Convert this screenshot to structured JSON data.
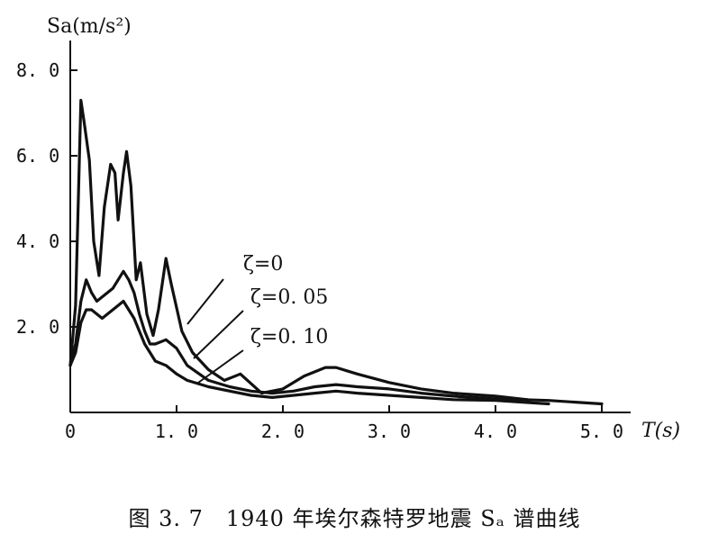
{
  "chart_data": {
    "type": "line",
    "ylabel": "Sa(m/s²)",
    "xlabel": "T(s)",
    "xlim": [
      0,
      5.0
    ],
    "ylim": [
      0,
      8.0
    ],
    "x_ticks": [
      0,
      1.0,
      2.0,
      3.0,
      4.0,
      5.0
    ],
    "x_tick_labels": [
      "0",
      "1. 0",
      "2. 0",
      "3. 0",
      "4. 0",
      "5. 0"
    ],
    "y_ticks": [
      2.0,
      4.0,
      6.0,
      8.0
    ],
    "y_tick_labels": [
      "2. 0",
      "4. 0",
      "6. 0",
      "8. 0"
    ],
    "grid": false,
    "series": [
      {
        "name": "ζ=0",
        "x": [
          0.0,
          0.05,
          0.1,
          0.13,
          0.18,
          0.22,
          0.27,
          0.32,
          0.38,
          0.42,
          0.45,
          0.5,
          0.53,
          0.57,
          0.62,
          0.66,
          0.72,
          0.78,
          0.83,
          0.9,
          0.95,
          1.05,
          1.15,
          1.3,
          1.45,
          1.6,
          1.8,
          2.0,
          2.2,
          2.4,
          2.5,
          2.7,
          3.0,
          3.3,
          3.6,
          4.0,
          4.3
        ],
        "y": [
          1.1,
          2.5,
          7.3,
          6.8,
          5.9,
          4.0,
          3.2,
          4.8,
          5.8,
          5.6,
          4.5,
          5.6,
          6.1,
          5.3,
          3.1,
          3.5,
          2.3,
          1.8,
          2.4,
          3.6,
          3.0,
          1.9,
          1.4,
          1.0,
          0.75,
          0.9,
          0.45,
          0.55,
          0.85,
          1.05,
          1.05,
          0.9,
          0.7,
          0.55,
          0.45,
          0.38,
          0.3
        ]
      },
      {
        "name": "ζ=0.05",
        "x": [
          0.0,
          0.05,
          0.1,
          0.15,
          0.2,
          0.25,
          0.3,
          0.35,
          0.4,
          0.45,
          0.5,
          0.55,
          0.6,
          0.65,
          0.7,
          0.75,
          0.8,
          0.9,
          1.0,
          1.1,
          1.3,
          1.5,
          1.7,
          1.9,
          2.1,
          2.3,
          2.5,
          2.7,
          3.0,
          3.3,
          3.6,
          4.0,
          4.5,
          5.0
        ],
        "y": [
          1.1,
          1.6,
          2.6,
          3.1,
          2.8,
          2.6,
          2.7,
          2.8,
          2.9,
          3.1,
          3.3,
          3.1,
          2.8,
          2.3,
          1.9,
          1.6,
          1.6,
          1.7,
          1.5,
          1.1,
          0.75,
          0.6,
          0.5,
          0.45,
          0.5,
          0.6,
          0.65,
          0.6,
          0.55,
          0.45,
          0.38,
          0.32,
          0.28,
          0.2
        ]
      },
      {
        "name": "ζ=0.10",
        "x": [
          0.0,
          0.05,
          0.1,
          0.15,
          0.2,
          0.3,
          0.4,
          0.5,
          0.6,
          0.7,
          0.8,
          0.9,
          1.0,
          1.1,
          1.3,
          1.5,
          1.7,
          1.9,
          2.1,
          2.3,
          2.5,
          2.7,
          3.0,
          3.3,
          3.6,
          4.0,
          4.5
        ],
        "y": [
          1.1,
          1.4,
          2.1,
          2.4,
          2.4,
          2.2,
          2.4,
          2.6,
          2.2,
          1.6,
          1.2,
          1.1,
          0.9,
          0.75,
          0.6,
          0.5,
          0.4,
          0.35,
          0.4,
          0.45,
          0.5,
          0.45,
          0.4,
          0.35,
          0.3,
          0.28,
          0.2
        ]
      }
    ],
    "annotations": [
      "ζ=0",
      "ζ=0. 05",
      "ζ=0. 10"
    ]
  },
  "caption": "图 3. 7　1940 年埃尔森特罗地震 Sₐ 谱曲线"
}
